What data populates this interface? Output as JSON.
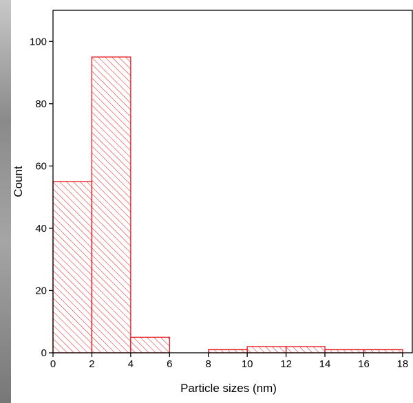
{
  "chart_data": {
    "type": "histogram",
    "xlabel": "Particle sizes (nm)",
    "ylabel": "Count",
    "bins": [
      0,
      2,
      4,
      6,
      8,
      10,
      12,
      14,
      16,
      18
    ],
    "counts": [
      55,
      95,
      5,
      0,
      1,
      2,
      2,
      1,
      1
    ],
    "color": "#e8151b",
    "hatch": true,
    "xlim": [
      0,
      18.5
    ],
    "ylim": [
      0,
      110
    ],
    "xticks": [
      0,
      2,
      4,
      6,
      8,
      10,
      12,
      14,
      16,
      18
    ],
    "yticks": [
      0,
      20,
      40,
      60,
      80,
      100
    ]
  }
}
